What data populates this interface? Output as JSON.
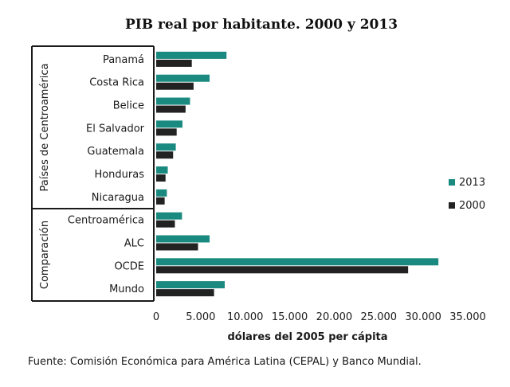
{
  "chart_data": {
    "type": "bar",
    "orientation": "horizontal",
    "title": "PIB real por habitante. 2000 y 2013",
    "xlabel": "dólares del 2005 per cápita",
    "xlim": [
      0,
      35000
    ],
    "xticks": [
      0,
      5000,
      10000,
      15000,
      20000,
      25000,
      30000,
      35000
    ],
    "xtick_labels": [
      "0",
      "5.000",
      "10.000",
      "15.000",
      "20.000",
      "25.000",
      "30.000",
      "35.000"
    ],
    "groups": [
      {
        "label": "Países de Centroamérica",
        "categories": [
          "Panamá",
          "Costa Rica",
          "Belice",
          "El Salvador",
          "Guatemala",
          "Honduras",
          "Nicaragua"
        ]
      },
      {
        "label": "Comparación",
        "categories": [
          "Centroamérica",
          "ALC",
          "OCDE",
          "Mundo"
        ]
      }
    ],
    "categories": [
      "Panamá",
      "Costa Rica",
      "Belice",
      "El Salvador",
      "Guatemala",
      "Honduras",
      "Nicaragua",
      "Centroamérica",
      "ALC",
      "OCDE",
      "Mundo"
    ],
    "series": [
      {
        "name": "2013",
        "color": "#1a8a80",
        "values": [
          7900,
          6000,
          3800,
          2950,
          2200,
          1300,
          1200,
          2900,
          6000,
          31700,
          7700
        ]
      },
      {
        "name": "2000",
        "color": "#222222",
        "values": [
          4000,
          4200,
          3300,
          2300,
          1900,
          1050,
          950,
          2100,
          4700,
          28300,
          6500
        ]
      }
    ],
    "legend_position": "right",
    "grid": false
  },
  "source": "Fuente: Comisión Económica para América Latina (CEPAL) y Banco Mundial."
}
